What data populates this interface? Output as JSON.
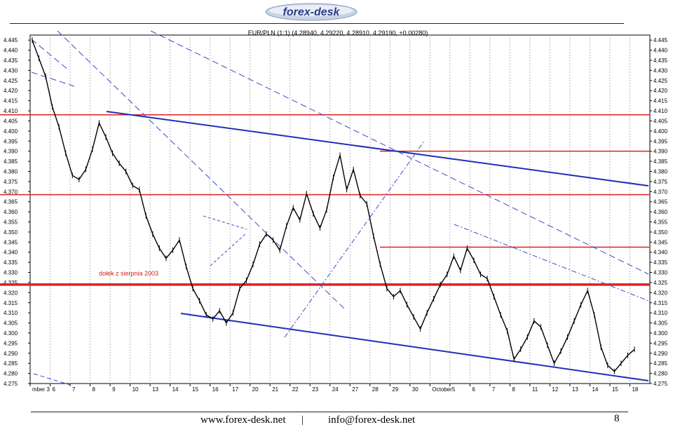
{
  "brand": {
    "name": "forex-desk"
  },
  "footer": {
    "website": "www.forex-desk.net",
    "separator": "|",
    "email": "info@forex-desk.net",
    "page_number": "8"
  },
  "chart_data": {
    "type": "line",
    "title": "EUR/PLN (1:1) (4.28940, 4.29220, 4.28910, 4.29190, +0.00280)",
    "xlabel": "",
    "ylabel": "",
    "ylim": [
      4.275,
      4.4475
    ],
    "y_ticks": [
      4.275,
      4.28,
      4.285,
      4.29,
      4.295,
      4.3,
      4.305,
      4.31,
      4.315,
      4.32,
      4.325,
      4.33,
      4.335,
      4.34,
      4.345,
      4.35,
      4.355,
      4.36,
      4.365,
      4.37,
      4.375,
      4.38,
      4.385,
      4.39,
      4.395,
      4.4,
      4.405,
      4.41,
      4.415,
      4.42,
      4.425,
      4.43,
      4.435,
      4.44,
      4.445
    ],
    "x_labels": [
      "mber 3",
      "6",
      "7",
      "8",
      "9",
      "10",
      "13",
      "14",
      "15",
      "16",
      "17",
      "20",
      "21",
      "22",
      "23",
      "24",
      "27",
      "28",
      "29",
      "30",
      "October",
      "5",
      "6",
      "7",
      "8",
      "11",
      "12",
      "13",
      "14",
      "15",
      "18"
    ],
    "series": [
      {
        "values": [
          4.445,
          4.436,
          4.427,
          4.412,
          4.402,
          4.389,
          4.378,
          4.376,
          4.381,
          4.391,
          4.404,
          4.397,
          4.389,
          4.384,
          4.38,
          4.373,
          4.371,
          4.358,
          4.349,
          4.342,
          4.337,
          4.341,
          4.346,
          4.333,
          4.322,
          4.316,
          4.309,
          4.307,
          4.311,
          4.305,
          4.31,
          4.322,
          4.326,
          4.334,
          4.344,
          4.349,
          4.346,
          4.341,
          4.353,
          4.362,
          4.356,
          4.369,
          4.359,
          4.352,
          4.361,
          4.377,
          4.388,
          4.371,
          4.381,
          4.368,
          4.364,
          4.348,
          4.334,
          4.322,
          4.318,
          4.321,
          4.314,
          4.308,
          4.302,
          4.31,
          4.317,
          4.324,
          4.329,
          4.338,
          4.331,
          4.342,
          4.336,
          4.329,
          4.327,
          4.318,
          4.309,
          4.301,
          4.287,
          4.292,
          4.298,
          4.306,
          4.303,
          4.294,
          4.285,
          4.291,
          4.298,
          4.306,
          4.314,
          4.321,
          4.309,
          4.293,
          4.284,
          4.281,
          4.285,
          4.289,
          4.2919
        ]
      }
    ],
    "support_resistance_levels": [
      4.408,
      4.39,
      4.3685,
      4.3425,
      4.324
    ],
    "annotations": [
      {
        "text": "dołek z sierpnia 2003",
        "y": 4.3265
      }
    ],
    "grid": "vertical dashed"
  }
}
